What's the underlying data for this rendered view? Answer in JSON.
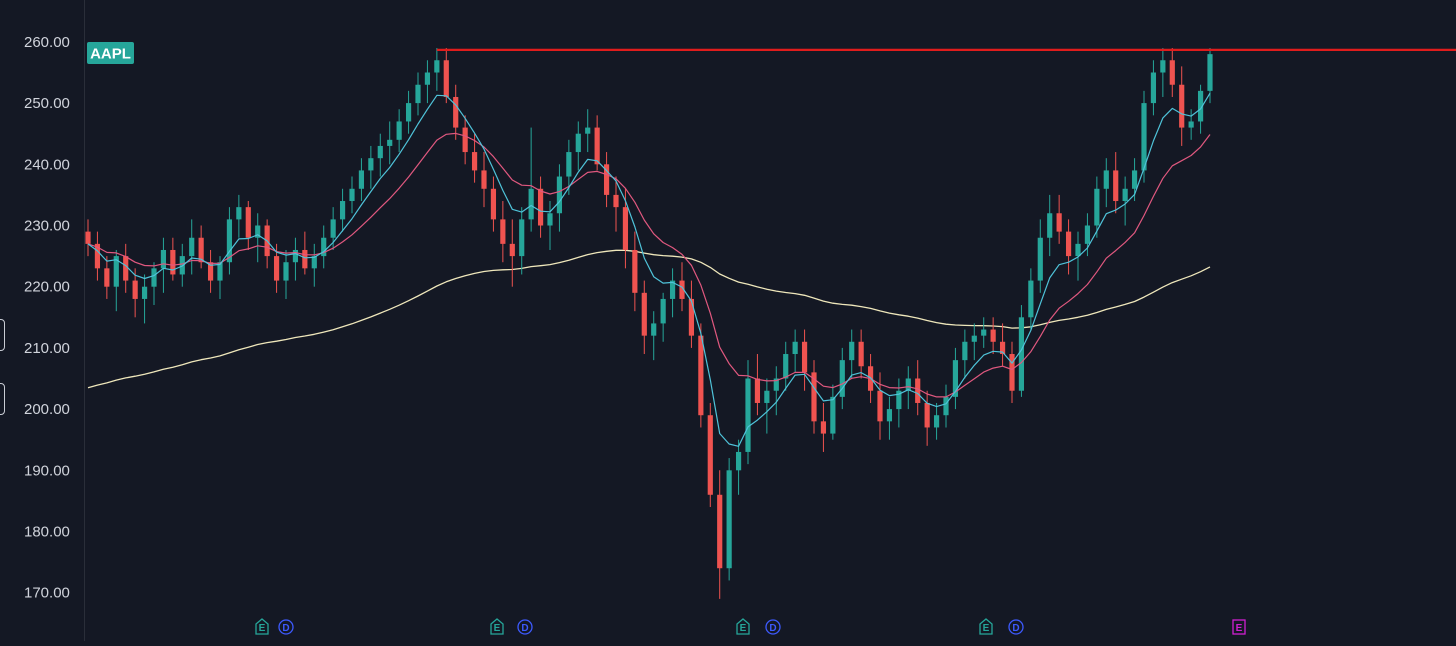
{
  "chart_data": {
    "type": "candlestick",
    "symbol": "AAPL",
    "y_ticks": [
      "260.00",
      "250.00",
      "240.00",
      "230.00",
      "220.00",
      "210.00",
      "200.00",
      "190.00",
      "180.00",
      "170.00"
    ],
    "ylim": [
      168,
      261
    ],
    "resistance_level": 258.7,
    "colors": {
      "up": "#26a69a",
      "down": "#ef5350",
      "ma_fast": "#4fc3d9",
      "ma_mid": "#e0587f",
      "ma_slow": "#efe7bb",
      "resistance": "#e01c1c",
      "background": "#141824",
      "axis_text": "#d1d4dc",
      "earnings_marker": "#26a69a",
      "dividend_marker": "#3d5afe",
      "upcoming_earnings_marker": "#d11fd1"
    },
    "candles": [
      [
        229,
        231,
        225,
        227
      ],
      [
        227,
        229,
        221,
        223
      ],
      [
        223,
        225,
        218,
        220
      ],
      [
        220,
        226,
        216,
        225
      ],
      [
        225,
        227,
        219,
        221
      ],
      [
        221,
        223,
        215,
        218
      ],
      [
        218,
        222,
        214,
        220
      ],
      [
        220,
        224,
        217,
        223
      ],
      [
        223,
        228,
        219,
        226
      ],
      [
        226,
        228,
        221,
        222
      ],
      [
        222,
        227,
        220,
        225
      ],
      [
        225,
        231,
        222,
        228
      ],
      [
        228,
        230,
        223,
        224
      ],
      [
        224,
        226,
        219,
        221
      ],
      [
        221,
        225,
        218,
        224
      ],
      [
        224,
        233,
        222,
        231
      ],
      [
        231,
        235,
        228,
        233
      ],
      [
        233,
        234,
        226,
        228
      ],
      [
        228,
        232,
        224,
        230
      ],
      [
        230,
        231,
        223,
        225
      ],
      [
        225,
        227,
        219,
        221
      ],
      [
        221,
        226,
        218,
        224
      ],
      [
        224,
        228,
        221,
        226
      ],
      [
        226,
        229,
        222,
        223
      ],
      [
        223,
        227,
        220,
        225
      ],
      [
        225,
        230,
        223,
        228
      ],
      [
        228,
        233,
        226,
        231
      ],
      [
        231,
        236,
        229,
        234
      ],
      [
        234,
        238,
        232,
        236
      ],
      [
        236,
        241,
        234,
        239
      ],
      [
        239,
        243,
        236,
        241
      ],
      [
        241,
        245,
        238,
        243
      ],
      [
        243,
        247,
        240,
        244
      ],
      [
        244,
        249,
        242,
        247
      ],
      [
        247,
        252,
        245,
        250
      ],
      [
        250,
        255,
        248,
        253
      ],
      [
        253,
        257,
        250,
        255
      ],
      [
        255,
        259,
        252,
        257
      ],
      [
        257,
        259,
        250,
        251
      ],
      [
        251,
        253,
        244,
        246
      ],
      [
        246,
        248,
        240,
        242
      ],
      [
        242,
        245,
        237,
        239
      ],
      [
        239,
        242,
        233,
        236
      ],
      [
        236,
        238,
        229,
        231
      ],
      [
        231,
        234,
        224,
        227
      ],
      [
        227,
        231,
        220,
        225
      ],
      [
        225,
        233,
        222,
        231
      ],
      [
        231,
        246,
        229,
        236
      ],
      [
        236,
        238,
        228,
        230
      ],
      [
        230,
        234,
        226,
        232
      ],
      [
        232,
        240,
        229,
        238
      ],
      [
        238,
        244,
        235,
        242
      ],
      [
        242,
        247,
        239,
        245
      ],
      [
        245,
        249,
        242,
        246
      ],
      [
        246,
        248,
        239,
        240
      ],
      [
        240,
        242,
        233,
        235
      ],
      [
        235,
        238,
        229,
        233
      ],
      [
        233,
        236,
        223,
        226
      ],
      [
        226,
        229,
        216,
        219
      ],
      [
        219,
        221,
        209,
        212
      ],
      [
        212,
        216,
        208,
        214
      ],
      [
        214,
        219,
        211,
        218
      ],
      [
        218,
        223,
        215,
        221
      ],
      [
        221,
        224,
        216,
        218
      ],
      [
        218,
        221,
        210,
        212
      ],
      [
        212,
        214,
        197,
        199
      ],
      [
        199,
        201,
        184,
        186
      ],
      [
        186,
        190,
        169,
        174
      ],
      [
        174,
        192,
        172,
        190
      ],
      [
        190,
        195,
        186,
        193
      ],
      [
        193,
        208,
        191,
        205
      ],
      [
        205,
        209,
        199,
        201
      ],
      [
        201,
        205,
        196,
        203
      ],
      [
        203,
        207,
        199,
        205
      ],
      [
        205,
        211,
        203,
        209
      ],
      [
        209,
        213,
        206,
        211
      ],
      [
        211,
        213,
        203,
        206
      ],
      [
        206,
        208,
        196,
        198
      ],
      [
        198,
        201,
        193,
        196
      ],
      [
        196,
        204,
        195,
        202
      ],
      [
        202,
        210,
        200,
        208
      ],
      [
        208,
        213,
        205,
        211
      ],
      [
        211,
        213,
        205,
        207
      ],
      [
        207,
        209,
        201,
        203
      ],
      [
        203,
        206,
        195,
        198
      ],
      [
        198,
        202,
        195,
        200
      ],
      [
        200,
        205,
        197,
        203
      ],
      [
        203,
        207,
        200,
        205
      ],
      [
        205,
        208,
        199,
        201
      ],
      [
        201,
        203,
        194,
        197
      ],
      [
        197,
        201,
        195,
        199
      ],
      [
        199,
        204,
        197,
        202
      ],
      [
        202,
        210,
        200,
        208
      ],
      [
        208,
        213,
        205,
        211
      ],
      [
        211,
        214,
        208,
        212
      ],
      [
        212,
        215,
        210,
        213
      ],
      [
        213,
        215,
        209,
        211
      ],
      [
        211,
        214,
        207,
        209
      ],
      [
        209,
        211,
        201,
        203
      ],
      [
        203,
        217,
        202,
        215
      ],
      [
        215,
        223,
        213,
        221
      ],
      [
        221,
        231,
        219,
        228
      ],
      [
        228,
        235,
        225,
        232
      ],
      [
        232,
        235,
        227,
        229
      ],
      [
        229,
        231,
        222,
        225
      ],
      [
        225,
        229,
        221,
        227
      ],
      [
        227,
        232,
        225,
        230
      ],
      [
        230,
        238,
        228,
        236
      ],
      [
        236,
        241,
        233,
        239
      ],
      [
        239,
        242,
        232,
        234
      ],
      [
        234,
        238,
        230,
        236
      ],
      [
        236,
        241,
        234,
        239
      ],
      [
        239,
        252,
        237,
        250
      ],
      [
        250,
        257,
        248,
        255
      ],
      [
        255,
        259,
        251,
        257
      ],
      [
        257,
        259,
        251,
        253
      ],
      [
        253,
        256,
        243,
        246
      ],
      [
        246,
        249,
        244,
        247
      ],
      [
        247,
        253,
        245,
        252
      ],
      [
        252,
        259,
        250,
        258
      ]
    ]
  },
  "event_markers": [
    {
      "kind": "earnings",
      "label": "E"
    },
    {
      "kind": "dividend",
      "label": "D"
    },
    {
      "kind": "earnings",
      "label": "E"
    },
    {
      "kind": "dividend",
      "label": "D"
    },
    {
      "kind": "earnings",
      "label": "E"
    },
    {
      "kind": "dividend",
      "label": "D"
    },
    {
      "kind": "earnings",
      "label": "E"
    },
    {
      "kind": "dividend",
      "label": "D"
    },
    {
      "kind": "upcoming-earnings",
      "label": "E"
    }
  ]
}
